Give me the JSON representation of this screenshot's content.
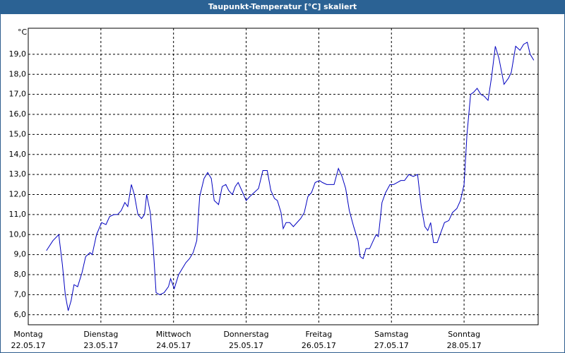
{
  "chart_data": {
    "type": "line",
    "title": "Taupunkt-Temperatur [°C] skaliert",
    "ylabel": "°C",
    "x": [
      0.25,
      0.34,
      0.42,
      0.47,
      0.51,
      0.55,
      0.59,
      0.63,
      0.68,
      0.74,
      0.79,
      0.85,
      0.88,
      0.94,
      1.01,
      1.07,
      1.12,
      1.18,
      1.23,
      1.28,
      1.33,
      1.37,
      1.42,
      1.46,
      1.51,
      1.56,
      1.6,
      1.63,
      1.68,
      1.72,
      1.76,
      1.81,
      1.87,
      1.93,
      1.96,
      2.01,
      2.07,
      2.12,
      2.17,
      2.22,
      2.27,
      2.32,
      2.36,
      2.42,
      2.47,
      2.52,
      2.56,
      2.62,
      2.67,
      2.72,
      2.76,
      2.81,
      2.85,
      2.89,
      2.94,
      3.0,
      3.05,
      3.11,
      3.17,
      3.23,
      3.29,
      3.34,
      3.39,
      3.43,
      3.48,
      3.51,
      3.55,
      3.6,
      3.65,
      3.7,
      3.75,
      3.8,
      3.85,
      3.9,
      3.95,
      4.01,
      4.05,
      4.11,
      4.16,
      4.21,
      4.27,
      4.32,
      4.37,
      4.42,
      4.48,
      4.54,
      4.57,
      4.61,
      4.65,
      4.7,
      4.75,
      4.79,
      4.82,
      4.87,
      4.92,
      4.98,
      5.03,
      5.08,
      5.13,
      5.18,
      5.24,
      5.3,
      5.36,
      5.41,
      5.46,
      5.5,
      5.54,
      5.58,
      5.63,
      5.68,
      5.73,
      5.79,
      5.84,
      5.9,
      5.95,
      6.0,
      6.04,
      6.09,
      6.13,
      6.18,
      6.23,
      6.28,
      6.33,
      6.38,
      6.43,
      6.48,
      6.55,
      6.61,
      6.65,
      6.71,
      6.77,
      6.82,
      6.87,
      6.91,
      6.96
    ],
    "series": [
      {
        "color": "#0000c0",
        "values": [
          9.2,
          9.7,
          10.0,
          8.5,
          7.0,
          6.2,
          6.7,
          7.5,
          7.4,
          8.1,
          8.9,
          9.1,
          9.0,
          10.0,
          10.6,
          10.5,
          10.9,
          11.0,
          11.0,
          11.2,
          11.6,
          11.4,
          12.5,
          12.0,
          11.0,
          10.8,
          11.0,
          12.0,
          11.1,
          9.4,
          7.1,
          7.0,
          7.1,
          7.4,
          7.8,
          7.3,
          8.0,
          8.3,
          8.6,
          8.8,
          9.1,
          9.7,
          11.9,
          12.8,
          13.1,
          12.8,
          11.7,
          11.5,
          12.4,
          12.5,
          12.2,
          12.0,
          12.4,
          12.6,
          12.2,
          11.7,
          11.9,
          12.1,
          12.3,
          13.2,
          13.2,
          12.2,
          11.8,
          11.7,
          11.1,
          10.3,
          10.6,
          10.6,
          10.4,
          10.6,
          10.8,
          11.1,
          11.9,
          12.1,
          12.6,
          12.7,
          12.6,
          12.5,
          12.5,
          12.5,
          13.3,
          12.9,
          12.3,
          11.2,
          10.4,
          9.7,
          8.9,
          8.8,
          9.3,
          9.3,
          9.7,
          10.0,
          9.9,
          11.6,
          12.1,
          12.5,
          12.5,
          12.6,
          12.7,
          12.7,
          13.0,
          12.9,
          13.0,
          11.4,
          10.4,
          10.2,
          10.6,
          9.6,
          9.6,
          10.1,
          10.6,
          10.7,
          11.1,
          11.3,
          11.7,
          12.5,
          15.0,
          17.0,
          17.1,
          17.3,
          17.0,
          16.9,
          16.7,
          17.9,
          19.4,
          18.8,
          17.5,
          17.8,
          18.1,
          19.4,
          19.2,
          19.5,
          19.6,
          19.0,
          18.7
        ]
      }
    ],
    "xlim": [
      0,
      7.02
    ],
    "xticks": [
      {
        "value": 0,
        "label": "Montag",
        "date": "22.05.17"
      },
      {
        "value": 1,
        "label": "Dienstag",
        "date": "23.05.17"
      },
      {
        "value": 2,
        "label": "Mittwoch",
        "date": "24.05.17"
      },
      {
        "value": 3,
        "label": "Donnerstag",
        "date": "25.05.17"
      },
      {
        "value": 4,
        "label": "Freitag",
        "date": "26.05.17"
      },
      {
        "value": 5,
        "label": "Samstag",
        "date": "27.05.17"
      },
      {
        "value": 6,
        "label": "Sonntag",
        "date": "28.05.17"
      }
    ],
    "ylim": [
      5.5,
      20.3
    ],
    "yticks": [
      {
        "value": 6,
        "label": "6,0"
      },
      {
        "value": 7,
        "label": "7,0"
      },
      {
        "value": 8,
        "label": "8,0"
      },
      {
        "value": 9,
        "label": "9,0"
      },
      {
        "value": 10,
        "label": "10,0"
      },
      {
        "value": 11,
        "label": "11,0"
      },
      {
        "value": 12,
        "label": "12,0"
      },
      {
        "value": 13,
        "label": "13,0"
      },
      {
        "value": 14,
        "label": "14,0"
      },
      {
        "value": 15,
        "label": "15,0"
      },
      {
        "value": 16,
        "label": "16,0"
      },
      {
        "value": 17,
        "label": "17,0"
      },
      {
        "value": 18,
        "label": "18,0"
      },
      {
        "value": 19,
        "label": "19,0"
      }
    ],
    "grid": true
  }
}
